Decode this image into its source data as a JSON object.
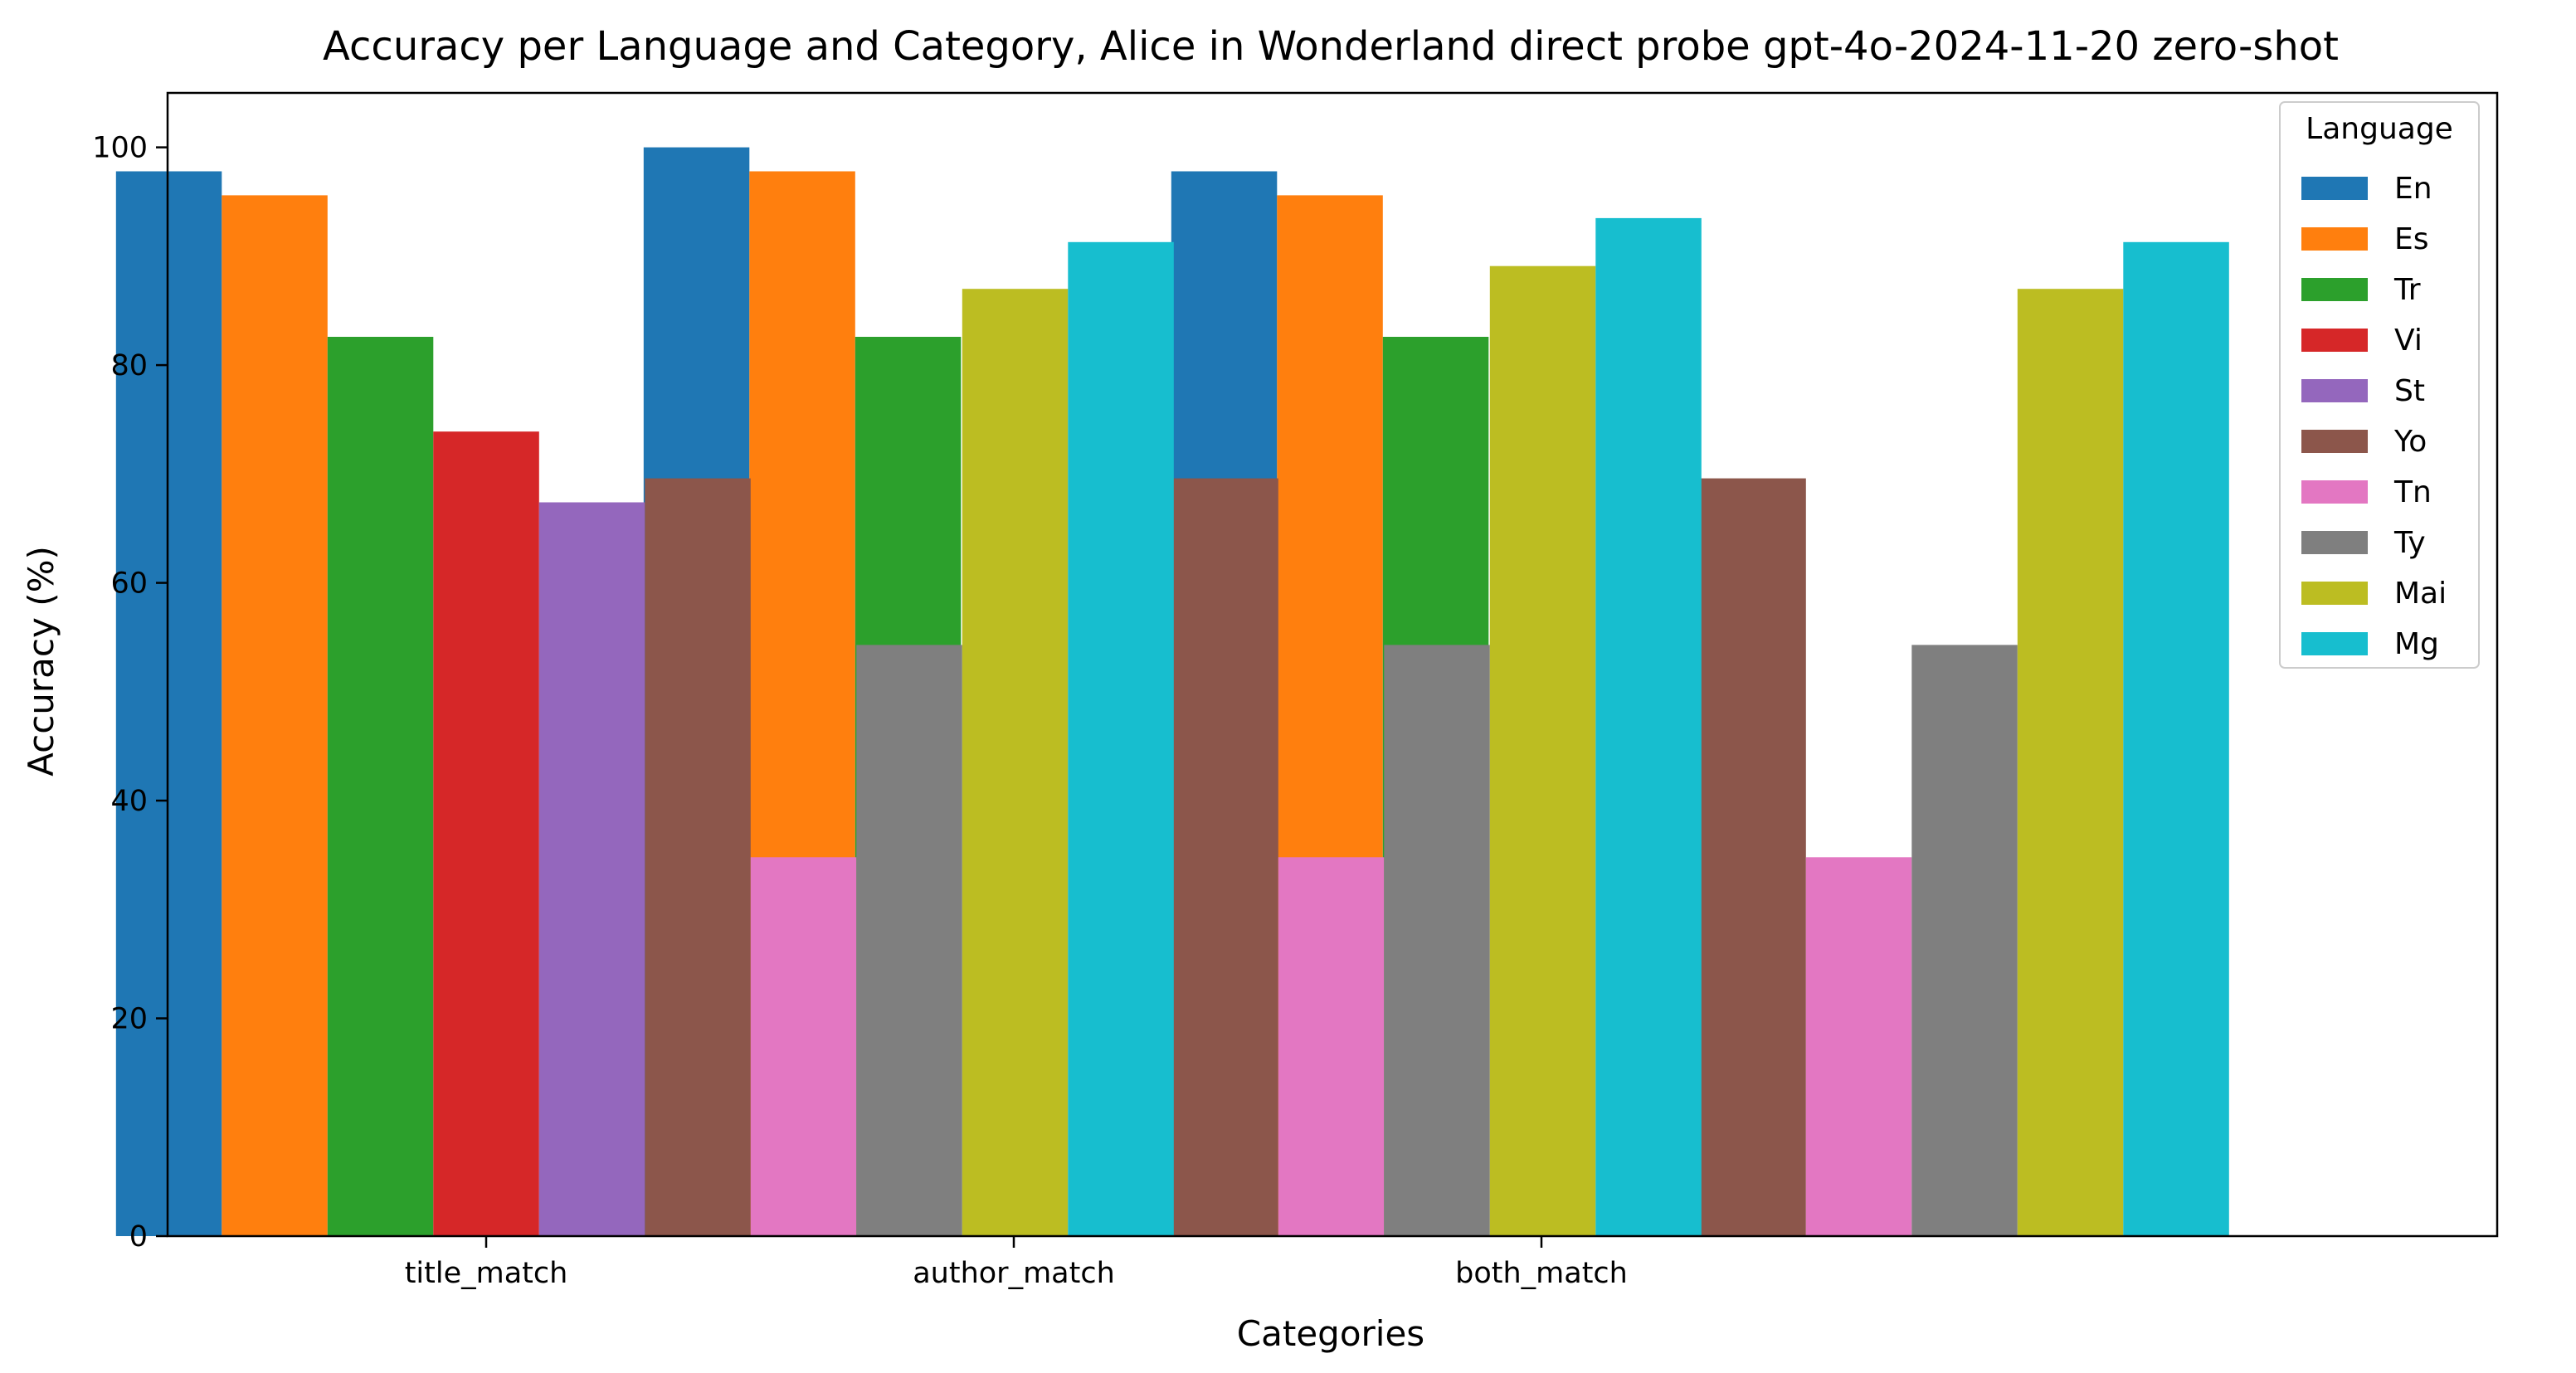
{
  "chart_data": {
    "type": "bar",
    "title": "Accuracy per Language and Category, Alice in Wonderland direct probe gpt-4o-2024-11-20 zero-shot",
    "xlabel": "Categories",
    "ylabel": "Accuracy (%)",
    "categories": [
      "title_match",
      "author_match",
      "both_match"
    ],
    "ylim": [
      0,
      105
    ],
    "yticks": [
      0,
      20,
      40,
      60,
      80,
      100
    ],
    "grid": false,
    "legend": {
      "title": "Language",
      "placement": "top-right"
    },
    "series": [
      {
        "name": "En",
        "color": "#1f77b4",
        "values": [
          97.8,
          100.0,
          97.8
        ]
      },
      {
        "name": "Es",
        "color": "#ff7f0e",
        "values": [
          95.6,
          97.8,
          95.6
        ]
      },
      {
        "name": "Tr",
        "color": "#2ca02c",
        "values": [
          82.6,
          82.6,
          82.6
        ]
      },
      {
        "name": "Vi",
        "color": "#d62728",
        "values": [
          73.9,
          0,
          0
        ]
      },
      {
        "name": "St",
        "color": "#9467bd",
        "values": [
          67.4,
          0,
          0
        ]
      },
      {
        "name": "Yo",
        "color": "#8c564b",
        "values": [
          69.6,
          69.6,
          69.6
        ]
      },
      {
        "name": "Tn",
        "color": "#e377c2",
        "values": [
          34.8,
          34.8,
          34.8
        ]
      },
      {
        "name": "Ty",
        "color": "#7f7f7f",
        "values": [
          54.3,
          54.3,
          54.3
        ]
      },
      {
        "name": "Mai",
        "color": "#bcbd22",
        "values": [
          87.0,
          89.1,
          87.0
        ]
      },
      {
        "name": "Mg",
        "color": "#17becf",
        "values": [
          91.3,
          93.5,
          91.3
        ]
      }
    ]
  }
}
